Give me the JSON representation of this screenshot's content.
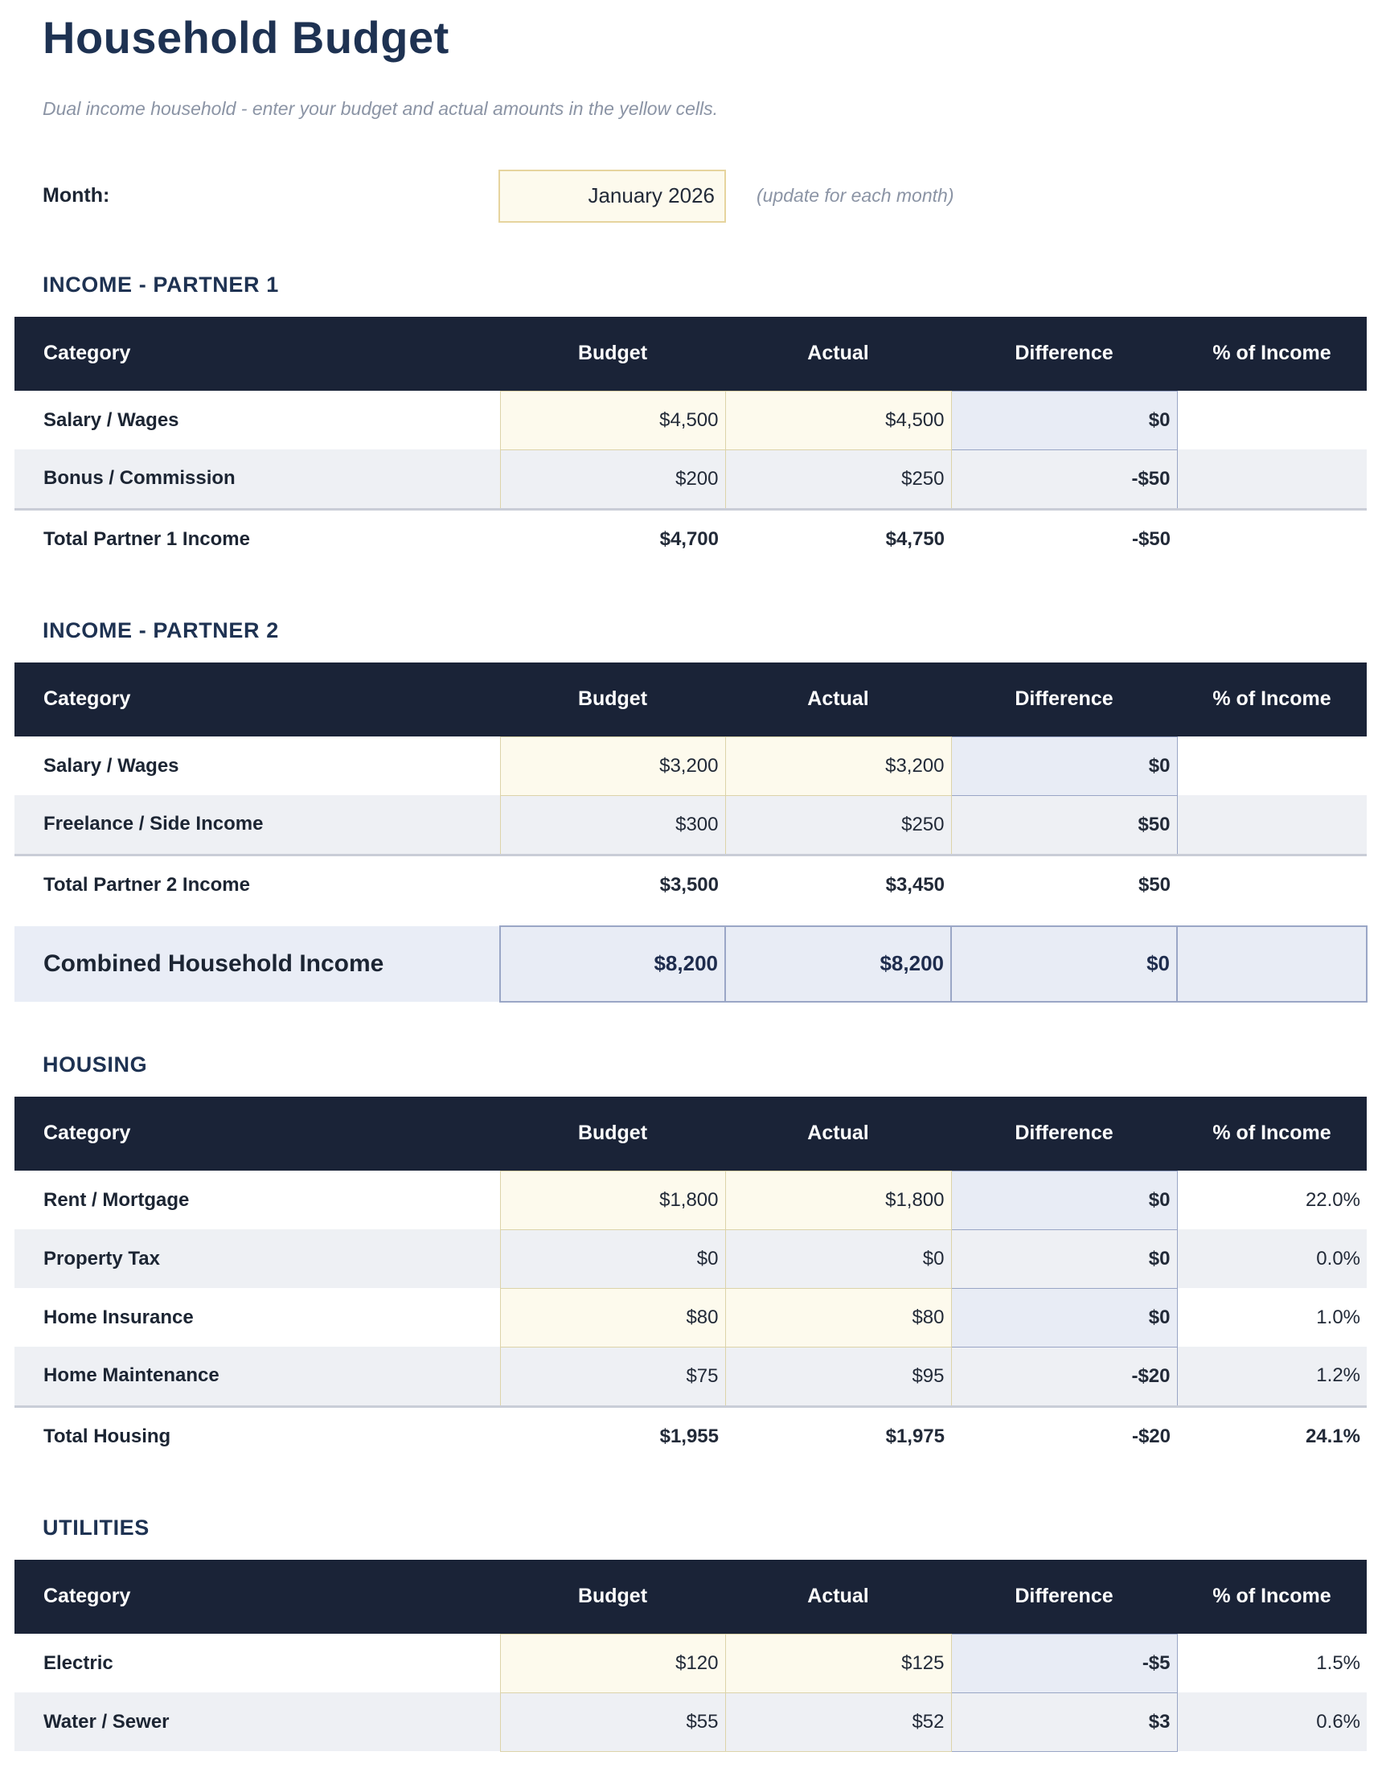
{
  "page": {
    "title": "Household Budget",
    "subtitle": "Dual income household - enter your budget and actual amounts in the yellow cells.",
    "month_label": "Month:",
    "month_value": "January 2026",
    "month_note": "(update for each month)"
  },
  "columns": [
    "Category",
    "Budget",
    "Actual",
    "Difference",
    "% of Income"
  ],
  "sections": [
    {
      "title": "INCOME - PARTNER 1",
      "rows": [
        {
          "category": "Salary / Wages",
          "budget": "$4,500",
          "actual": "$4,500",
          "difference": "$0",
          "diff_style": "neutral",
          "pct": ""
        },
        {
          "category": "Bonus / Commission",
          "budget": "$200",
          "actual": "$250",
          "difference": "-$50",
          "diff_style": "negative",
          "pct": ""
        }
      ],
      "total": {
        "label": "Total Partner 1 Income",
        "budget": "$4,700",
        "actual": "$4,750",
        "difference": "-$50",
        "diff_style": "negative",
        "pct": ""
      }
    },
    {
      "title": "INCOME - PARTNER 2",
      "rows": [
        {
          "category": "Salary / Wages",
          "budget": "$3,200",
          "actual": "$3,200",
          "difference": "$0",
          "diff_style": "neutral",
          "pct": ""
        },
        {
          "category": "Freelance / Side Income",
          "budget": "$300",
          "actual": "$250",
          "difference": "$50",
          "diff_style": "positive",
          "pct": ""
        }
      ],
      "total": {
        "label": "Total Partner 2 Income",
        "budget": "$3,500",
        "actual": "$3,450",
        "difference": "$50",
        "diff_style": "positive",
        "pct": ""
      },
      "combined": {
        "label": "Combined Household Income",
        "budget": "$8,200",
        "actual": "$8,200",
        "difference": "$0",
        "diff_style": "neutral",
        "pct": ""
      }
    },
    {
      "title": "HOUSING",
      "rows": [
        {
          "category": "Rent / Mortgage",
          "budget": "$1,800",
          "actual": "$1,800",
          "difference": "$0",
          "diff_style": "neutral",
          "pct": "22.0%"
        },
        {
          "category": "Property Tax",
          "budget": "$0",
          "actual": "$0",
          "difference": "$0",
          "diff_style": "neutral",
          "pct": "0.0%"
        },
        {
          "category": "Home Insurance",
          "budget": "$80",
          "actual": "$80",
          "difference": "$0",
          "diff_style": "neutral",
          "pct": "1.0%"
        },
        {
          "category": "Home Maintenance",
          "budget": "$75",
          "actual": "$95",
          "difference": "-$20",
          "diff_style": "negative",
          "pct": "1.2%"
        }
      ],
      "total": {
        "label": "Total Housing",
        "budget": "$1,955",
        "actual": "$1,975",
        "difference": "-$20",
        "diff_style": "negative",
        "pct": "24.1%"
      }
    },
    {
      "title": "UTILITIES",
      "rows": [
        {
          "category": "Electric",
          "budget": "$120",
          "actual": "$125",
          "difference": "-$5",
          "diff_style": "negative",
          "pct": "1.5%"
        },
        {
          "category": "Water / Sewer",
          "budget": "$55",
          "actual": "$52",
          "difference": "$3",
          "diff_style": "positive",
          "pct": "0.6%"
        }
      ],
      "total": null
    }
  ],
  "colors": {
    "header_navy": "#1a2337",
    "title_navy": "#1e3252",
    "input_cell_yellow": "#fdfaed",
    "computed_cell_blue": "#e8ecf5",
    "positive_green": "#0e7d49",
    "negative_red": "#bb1e1e",
    "alt_row_gray": "#eef0f4"
  }
}
